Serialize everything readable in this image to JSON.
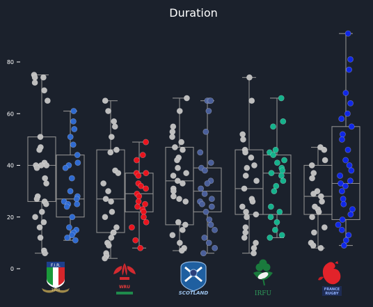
{
  "chart_data": {
    "type": "box-strip",
    "title": "Duration",
    "xlabel": "",
    "ylabel": "",
    "ylim": [
      -2,
      95
    ],
    "yticks": [
      0,
      20,
      40,
      60,
      80
    ],
    "grid": false,
    "teams": [
      {
        "name": "Italy",
        "logo": "italy-fir-crest",
        "logo_text": "F.I.R.",
        "logo_subtext": "1928",
        "groups": [
          {
            "color": "#bdbdbd",
            "stats": {
              "min": 6,
              "q1": 26,
              "median": 40,
              "q3": 51,
              "max": 75
            },
            "values": [
              75,
              74,
              74,
              72,
              69,
              65,
              51,
              47,
              46,
              41,
              40,
              40,
              40,
              39,
              35,
              33,
              28,
              27,
              26,
              25,
              22,
              20,
              18,
              16,
              12,
              7,
              6
            ]
          },
          {
            "color": "#2f6ad0",
            "stats": {
              "min": 11,
              "q1": 20,
              "median": 27,
              "q3": 44,
              "max": 61
            },
            "values": [
              61,
              57,
              54,
              51,
              48,
              44,
              41,
              40,
              39,
              35,
              30,
              28,
              27,
              26,
              25,
              25,
              24,
              20,
              16,
              15,
              14,
              13,
              12,
              11
            ]
          }
        ]
      },
      {
        "name": "Wales",
        "logo": "wales-feathers-crest",
        "logo_text": "WRU",
        "groups": [
          {
            "color": "#bdbdbd",
            "stats": {
              "min": 4,
              "q1": 14,
              "median": 27,
              "q3": 46,
              "max": 65
            },
            "values": [
              65,
              61,
              57,
              55,
              51,
              46,
              45,
              38,
              37,
              33,
              30,
              27,
              26,
              22,
              20,
              16,
              14,
              14,
              12,
              10,
              9,
              6,
              5,
              4
            ]
          },
          {
            "color": "#e8141e",
            "stats": {
              "min": 8,
              "q1": 22,
              "median": 29,
              "q3": 37,
              "max": 49
            },
            "values": [
              49,
              44,
              42,
              37,
              37,
              36,
              33,
              32,
              31,
              29,
              28,
              26,
              25,
              24,
              23,
              22,
              20,
              18,
              16,
              11,
              8
            ]
          }
        ]
      },
      {
        "name": "Scotland",
        "logo": "scotland-thistle-crest",
        "logo_text": "SCOTLAND",
        "groups": [
          {
            "color": "#bdbdbd",
            "stats": {
              "min": 7,
              "q1": 17,
              "median": 34,
              "q3": 47,
              "max": 66
            },
            "values": [
              66,
              61,
              55,
              53,
              51,
              49,
              47,
              46,
              43,
              42,
              39,
              37,
              36,
              34,
              33,
              31,
              30,
              28,
              27,
              26,
              18,
              17,
              15,
              13,
              10,
              8,
              7
            ]
          },
          {
            "color": "#4a5f9a",
            "stats": {
              "min": 6,
              "q1": 22,
              "median": 30,
              "q3": 39,
              "max": 65
            },
            "values": [
              65,
              65,
              65,
              61,
              53,
              45,
              41,
              39,
              38,
              34,
              33,
              31,
              29,
              27,
              26,
              25,
              24,
              22,
              19,
              17,
              15,
              12,
              10,
              8,
              6
            ]
          }
        ]
      },
      {
        "name": "Ireland",
        "logo": "ireland-shamrock-crest",
        "logo_text": "IRFU",
        "groups": [
          {
            "color": "#bdbdbd",
            "stats": {
              "min": 6,
              "q1": 21,
              "median": 31,
              "q3": 46,
              "max": 74
            },
            "values": [
              74,
              65,
              52,
              50,
              46,
              45,
              43,
              40,
              39,
              36,
              34,
              31,
              27,
              26,
              24,
              22,
              21,
              20,
              16,
              14,
              12,
              10,
              8,
              6
            ]
          },
          {
            "color": "#15b28c",
            "stats": {
              "min": 12,
              "q1": 21,
              "median": 37,
              "q3": 44,
              "max": 66
            },
            "values": [
              66,
              57,
              55,
              46,
              45,
              44,
              42,
              41,
              39,
              38,
              37,
              36,
              34,
              32,
              30,
              24,
              22,
              20,
              18,
              15,
              13,
              12
            ]
          }
        ]
      },
      {
        "name": "France",
        "logo": "france-rooster-crest",
        "logo_text": "FRANCE RUGBY",
        "groups": [
          {
            "color": "#bdbdbd",
            "stats": {
              "min": 8,
              "q1": 21,
              "median": 28,
              "q3": 40,
              "max": 47
            },
            "values": [
              47,
              46,
              42,
              40,
              37,
              35,
              30,
              29,
              28,
              26,
              24,
              23,
              22,
              20,
              16,
              14,
              10,
              9,
              8
            ]
          },
          {
            "color": "#1028e6",
            "stats": {
              "min": 9,
              "q1": 19,
              "median": 33,
              "q3": 55,
              "max": 91
            },
            "values": [
              91,
              81,
              77,
              68,
              64,
              60,
              58,
              55,
              52,
              50,
              46,
              42,
              40,
              38,
              36,
              34,
              33,
              32,
              30,
              27,
              25,
              23,
              21,
              19,
              17,
              15,
              13,
              11,
              9
            ]
          }
        ]
      }
    ]
  }
}
